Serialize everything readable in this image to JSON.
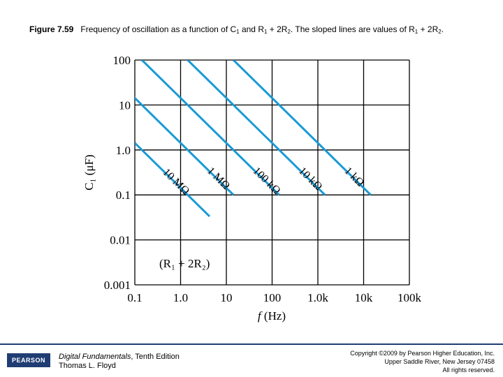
{
  "caption": {
    "fig": "Figure 7.59",
    "p1": "Frequency of oscillation as a function of C",
    "s1": "1",
    "p2": " and R",
    "s2": "1",
    "p3": " + 2R",
    "s3": "2",
    "p4": ". The sloped lines are values of R",
    "s4": "1",
    "p5": " + 2R",
    "s5": "2",
    "p6": "."
  },
  "chart_data": {
    "type": "line",
    "x_scale": "log",
    "y_scale": "log",
    "xlim": [
      0.1,
      100000
    ],
    "ylim": [
      0.001,
      100
    ],
    "x_ticks": [
      "0.1",
      "1.0",
      "10",
      "100",
      "1.0k",
      "10k",
      "100k"
    ],
    "x_tick_values": [
      0.1,
      1,
      10,
      100,
      1000,
      10000,
      100000
    ],
    "y_ticks": [
      "0.001",
      "0.01",
      "0.1",
      "1.0",
      "10",
      "100"
    ],
    "y_tick_values": [
      0.001,
      0.01,
      0.1,
      1,
      10,
      100
    ],
    "xlabel_main": "f",
    "xlabel_unit": " (Hz)",
    "ylabel": "C₁ (μF)",
    "grid": true,
    "annotation": "(R₁ + 2R₂)",
    "line_color": "#1a9ad6",
    "series": [
      {
        "name": "10 MΩ",
        "x": [
          0.1,
          4.3
        ],
        "y": [
          1.43,
          0.0333
        ]
      },
      {
        "name": "1 MΩ",
        "x": [
          0.0143,
          14.3
        ],
        "y": [
          100,
          0.1
        ]
      },
      {
        "name": "100 kΩ",
        "x": [
          0.143,
          143
        ],
        "y": [
          100,
          0.1
        ]
      },
      {
        "name": "10 kΩ",
        "x": [
          1.43,
          1430
        ],
        "y": [
          100,
          0.1
        ]
      },
      {
        "name": "1 kΩ",
        "x": [
          14.3,
          14300
        ],
        "y": [
          100,
          0.1
        ]
      }
    ]
  },
  "footer": {
    "logo": "PEARSON",
    "book_title": "Digital Fundamentals",
    "book_edition": ", Tenth Edition",
    "author": "Thomas L. Floyd",
    "copy1": "Copyright ©2009 by Pearson Higher Education, Inc.",
    "copy2": "Upper Saddle River, New Jersey 07458",
    "copy3": "All rights reserved."
  }
}
